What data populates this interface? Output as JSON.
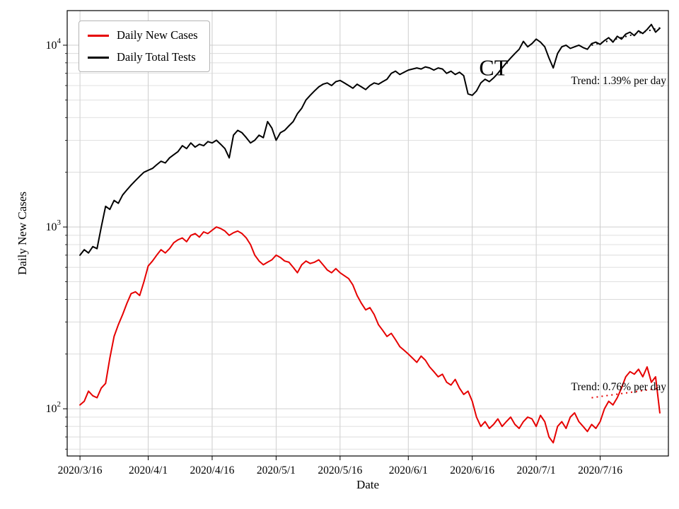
{
  "figure": {
    "title": "CT",
    "xlabel": "Date",
    "ylabel": "Daily New Cases",
    "background": "#ffffff"
  },
  "legend": {
    "position": "upper left",
    "items": [
      {
        "label": "Daily New Cases",
        "color": "#e60000"
      },
      {
        "label": "Daily Total Tests",
        "color": "#000000"
      }
    ]
  },
  "annotations": [
    {
      "text": "Trend: 1.39% per day",
      "color": "#000000",
      "x_day": 137.5,
      "value": 6300,
      "align": "right"
    },
    {
      "text": "Trend: 0.76% per day",
      "color": "#000000",
      "x_day": 137.5,
      "value": 130,
      "align": "right"
    }
  ],
  "chart_data": {
    "type": "line",
    "title": "CT",
    "xlabel": "Date",
    "ylabel": "Daily New Cases",
    "y_scale": "log",
    "grid": true,
    "legend_position": "upper left",
    "x_start_date": "2020/3/16",
    "x_unit": "day",
    "xlim_days": [
      -3,
      138
    ],
    "ylim": [
      55,
      15500
    ],
    "title_pos": {
      "x_day": 97,
      "value": 7500
    },
    "x_ticks": [
      {
        "label": "2020/3/16",
        "day": 0
      },
      {
        "label": "2020/4/1",
        "day": 16
      },
      {
        "label": "2020/4/16",
        "day": 31
      },
      {
        "label": "2020/5/1",
        "day": 46
      },
      {
        "label": "2020/5/16",
        "day": 61
      },
      {
        "label": "2020/6/1",
        "day": 77
      },
      {
        "label": "2020/6/16",
        "day": 92
      },
      {
        "label": "2020/7/1",
        "day": 107
      },
      {
        "label": "2020/7/16",
        "day": 122
      }
    ],
    "y_ticks": [
      {
        "value": 100,
        "base": "10",
        "exp": "2"
      },
      {
        "value": 1000,
        "base": "10",
        "exp": "3"
      },
      {
        "value": 10000,
        "base": "10",
        "exp": "4"
      }
    ],
    "series": [
      {
        "name": "Daily New Cases",
        "color": "#e60000",
        "values": [
          105,
          110,
          125,
          118,
          115,
          130,
          138,
          190,
          250,
          290,
          330,
          380,
          430,
          440,
          420,
          500,
          610,
          650,
          700,
          750,
          720,
          760,
          820,
          850,
          870,
          830,
          900,
          920,
          880,
          940,
          920,
          960,
          1000,
          980,
          950,
          900,
          930,
          950,
          920,
          870,
          800,
          700,
          650,
          620,
          640,
          660,
          700,
          680,
          650,
          640,
          600,
          560,
          620,
          650,
          630,
          640,
          660,
          620,
          580,
          560,
          590,
          560,
          540,
          520,
          480,
          420,
          380,
          350,
          360,
          330,
          290,
          270,
          250,
          260,
          240,
          220,
          210,
          200,
          190,
          180,
          195,
          185,
          170,
          160,
          150,
          155,
          140,
          135,
          145,
          130,
          120,
          125,
          110,
          90,
          80,
          85,
          78,
          82,
          88,
          80,
          85,
          90,
          82,
          78,
          85,
          90,
          88,
          80,
          92,
          85,
          70,
          65,
          80,
          85,
          78,
          90,
          95,
          85,
          80,
          75,
          82,
          78,
          85,
          100,
          110,
          105,
          115,
          130,
          150,
          160,
          155,
          165,
          150,
          170,
          140,
          150,
          95
        ]
      },
      {
        "name": "Daily Total Tests",
        "color": "#000000",
        "values": [
          700,
          750,
          720,
          780,
          760,
          1000,
          1300,
          1250,
          1400,
          1350,
          1500,
          1600,
          1700,
          1800,
          1900,
          2000,
          2050,
          2100,
          2200,
          2300,
          2250,
          2400,
          2500,
          2600,
          2800,
          2700,
          2900,
          2750,
          2850,
          2800,
          2950,
          2900,
          3000,
          2850,
          2700,
          2400,
          3200,
          3400,
          3300,
          3100,
          2900,
          3000,
          3200,
          3100,
          3800,
          3500,
          3000,
          3300,
          3400,
          3600,
          3800,
          4200,
          4500,
          5000,
          5300,
          5600,
          5900,
          6100,
          6200,
          6000,
          6300,
          6400,
          6200,
          6000,
          5800,
          6100,
          5900,
          5700,
          6000,
          6200,
          6100,
          6300,
          6500,
          7000,
          7200,
          6900,
          7100,
          7300,
          7400,
          7500,
          7400,
          7600,
          7500,
          7300,
          7500,
          7400,
          7000,
          7200,
          6900,
          7100,
          6800,
          5400,
          5300,
          5600,
          6200,
          6500,
          6300,
          6600,
          7000,
          7500,
          8000,
          8500,
          9000,
          9500,
          10500,
          9800,
          10200,
          10800,
          10400,
          9800,
          8500,
          7500,
          9000,
          9800,
          10000,
          9600,
          9800,
          10000,
          9700,
          9500,
          10200,
          10400,
          10100,
          10600,
          11000,
          10400,
          11200,
          10800,
          11500,
          11800,
          11300,
          12000,
          11600,
          12200,
          13000,
          11800,
          12400
        ]
      }
    ],
    "trend_lines": [
      {
        "series": "Daily Total Tests",
        "rate_percent_per_day": 1.39,
        "start_day": 120,
        "end_day": 136,
        "start_value": 10000,
        "color": "#000000"
      },
      {
        "series": "Daily New Cases",
        "rate_percent_per_day": 0.76,
        "start_day": 120,
        "end_day": 136,
        "start_value": 115,
        "color": "#e60000"
      }
    ]
  }
}
